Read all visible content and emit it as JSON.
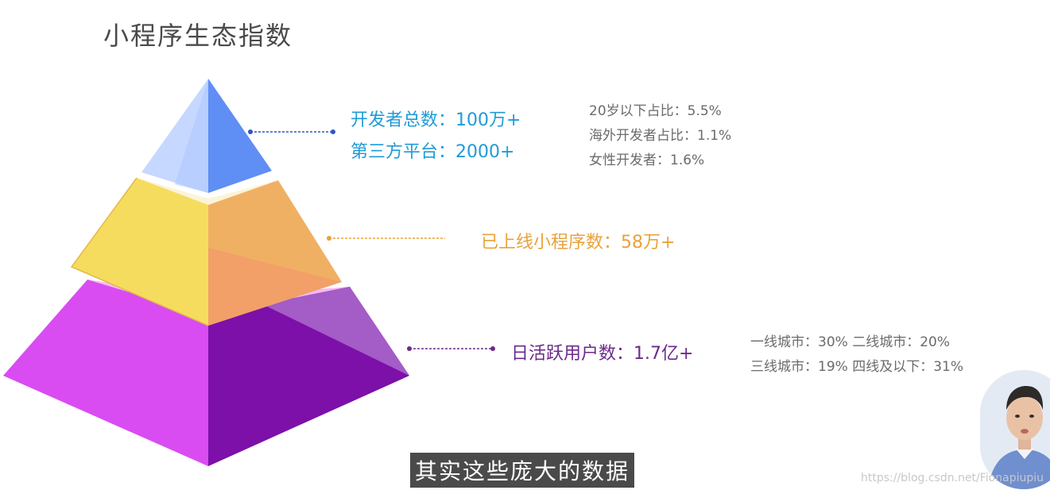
{
  "title": "小程序生态指数",
  "tier_top": {
    "lines": [
      "开发者总数：100万+",
      "第三方平台：2000+"
    ],
    "details": [
      "20岁以下占比：5.5%",
      "海外开发者占比：1.1%",
      "女性开发者：1.6%"
    ],
    "color": "#1f9bd7"
  },
  "tier_middle": {
    "lines": [
      "已上线小程序数：58万+"
    ],
    "color": "#e9a23a"
  },
  "tier_bottom": {
    "lines": [
      "日活跃用户数：1.7亿+"
    ],
    "details": [
      "一线城市：30%  二线城市：20%",
      "三线城市：19%  四线及以下：31%"
    ],
    "color": "#6c2a8a"
  },
  "subtitle": "其实这些庞大的数据",
  "watermark": "https://blog.csdn.net/Fionapiupiu"
}
